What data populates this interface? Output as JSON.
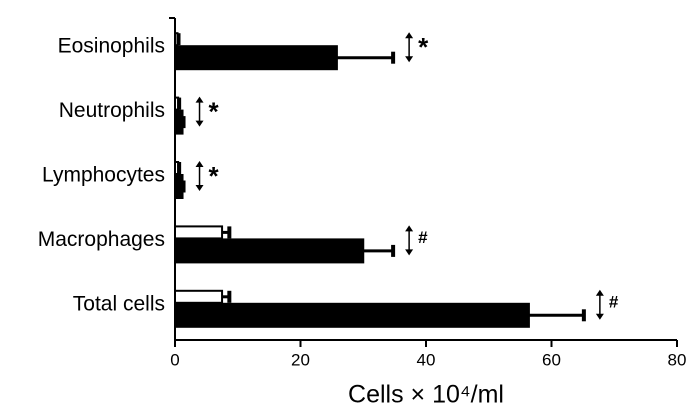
{
  "chart_data": {
    "type": "bar",
    "orientation": "horizontal",
    "categories": [
      "Eosinophils",
      "Neutrophils",
      "Lymphocytes",
      "Macrophages",
      "Total cells"
    ],
    "series": [
      {
        "color": "#ffffff",
        "values": [
          0.4,
          0.5,
          0.5,
          7.5,
          7.5
        ],
        "errors": [
          0,
          0,
          0,
          1,
          1
        ]
      },
      {
        "color": "#000000",
        "values": [
          25.8,
          1.2,
          1.2,
          30,
          56.4
        ],
        "errors": [
          8.8,
          0,
          0,
          4.6,
          8.6
        ]
      }
    ],
    "annotations": [
      "*",
      "*",
      "*",
      "#",
      "#"
    ],
    "x_label": "Cells × 10⁴/ml",
    "xlim": [
      0,
      80
    ],
    "xticks": [
      0,
      20,
      40,
      60,
      80
    ]
  }
}
